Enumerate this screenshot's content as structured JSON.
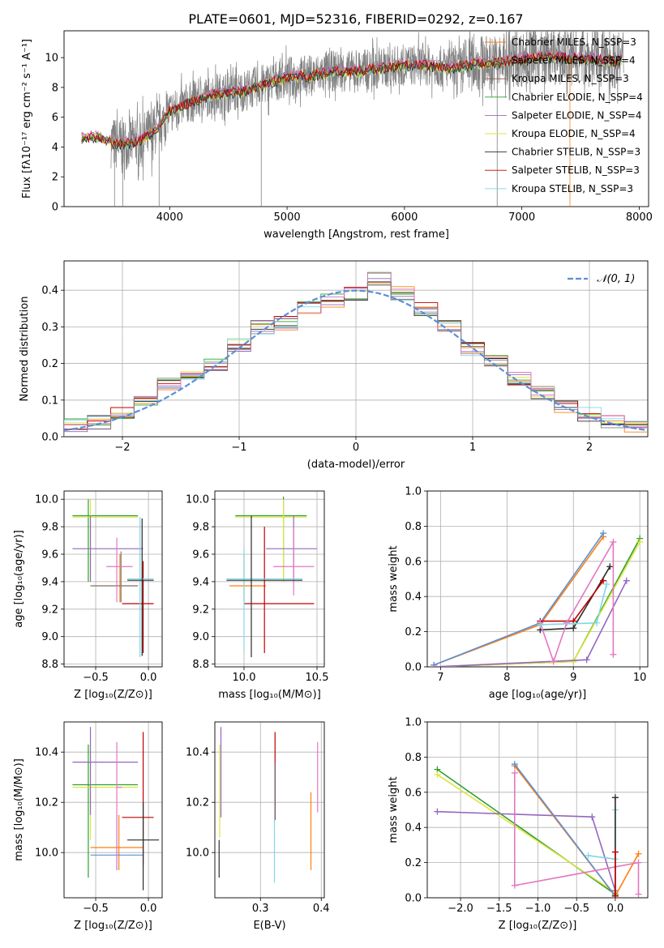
{
  "figure": {
    "title": "PLATE=0601, MJD=52316, FIBERID=0292, z=0.167"
  },
  "colors": [
    "#ff7f0e",
    "#7f7f7f",
    "#8c564b",
    "#2ca02c",
    "#9467bd",
    "#e0e33f",
    "#2b2b2b",
    "#c00000",
    "#7fd8e8",
    "#e377c2",
    "#5b8fd6",
    "#3b6e3b"
  ],
  "chart_data": [
    {
      "type": "line",
      "panel": "spectrum",
      "xlabel": "wavelength [Angstrom, rest frame]",
      "ylabel": "Flux [fλ10⁻¹⁷ erg cm⁻² s⁻¹ A⁻¹]",
      "xlim": [
        3100,
        8080
      ],
      "ylim": [
        0,
        11.8
      ],
      "xticks": [
        4000,
        5000,
        6000,
        7000,
        8000
      ],
      "yticks": [
        0,
        2,
        4,
        6,
        8,
        10
      ],
      "grid": false,
      "legend_position": "top-right",
      "legend": [
        "Chabrier MILES, N_SSP=3",
        "Salpeter MILES, N_SSP=4",
        "Kroupa MILES, N_SSP=3",
        "Chabrier ELODIE, N_SSP=4",
        "Salpeter ELODIE, N_SSP=4",
        "Kroupa ELODIE, N_SSP=4",
        "Chabrier STELIB, N_SSP=3",
        "Salpeter STELIB, N_SSP=3",
        "Kroupa STELIB, N_SSP=3"
      ],
      "data_series_x": [
        3250,
        3400,
        3550,
        3700,
        3850,
        4000,
        4200,
        4400,
        4600,
        4800,
        5000,
        5200,
        5400,
        5600,
        5800,
        6000,
        6200,
        6400,
        6600,
        6800,
        7000,
        7200,
        7400,
        7600,
        7850
      ],
      "data_series_y": [
        4.6,
        4.7,
        4.2,
        4.3,
        4.9,
        6.4,
        7.1,
        7.6,
        7.7,
        8.2,
        8.7,
        8.8,
        9.1,
        9.1,
        9.3,
        9.5,
        9.5,
        9.3,
        9.6,
        9.7,
        9.9,
        10.1,
        10.0,
        9.9,
        9.8
      ],
      "series": [
        {
          "name": "data",
          "color": "#808080"
        },
        {
          "name": "Chabrier MILES, N_SSP=3",
          "color": "#ff7f0e"
        },
        {
          "name": "Salpeter MILES, N_SSP=4",
          "color": "#7f7f7f"
        },
        {
          "name": "Kroupa MILES, N_SSP=3",
          "color": "#8c564b"
        },
        {
          "name": "Chabrier ELODIE, N_SSP=4",
          "color": "#2ca02c"
        },
        {
          "name": "Salpeter ELODIE, N_SSP=4",
          "color": "#9467bd"
        },
        {
          "name": "Kroupa ELODIE, N_SSP=4",
          "color": "#e0e33f"
        },
        {
          "name": "Chabrier STELIB, N_SSP=3",
          "color": "#2b2b2b"
        },
        {
          "name": "Salpeter STELIB, N_SSP=3",
          "color": "#c00000"
        },
        {
          "name": "Kroupa STELIB, N_SSP=3",
          "color": "#7fd8e8"
        }
      ]
    },
    {
      "type": "line",
      "panel": "residuals",
      "xlabel": "(data-model)/error",
      "ylabel": "Normed distribution",
      "xlim": [
        -2.5,
        2.5
      ],
      "ylim": [
        0,
        0.48
      ],
      "xticks": [
        -2,
        -1,
        0,
        1,
        2
      ],
      "yticks": [
        0.0,
        0.1,
        0.2,
        0.3,
        0.4
      ],
      "grid": true,
      "legend_position": "top-right",
      "legend": [
        "𝒩(0, 1)"
      ],
      "bins": [
        -2.5,
        -2.3,
        -2.1,
        -1.9,
        -1.7,
        -1.5,
        -1.3,
        -1.1,
        -0.9,
        -0.7,
        -0.5,
        -0.3,
        -0.1,
        0.1,
        0.3,
        0.5,
        0.7,
        0.9,
        1.1,
        1.3,
        1.5,
        1.7,
        1.9,
        2.1,
        2.3,
        2.5
      ],
      "hist": [
        0.03,
        0.04,
        0.06,
        0.1,
        0.14,
        0.17,
        0.2,
        0.25,
        0.3,
        0.31,
        0.35,
        0.37,
        0.39,
        0.43,
        0.39,
        0.35,
        0.3,
        0.24,
        0.21,
        0.16,
        0.12,
        0.08,
        0.06,
        0.04,
        0.03
      ],
      "normal_curve": {
        "name": "𝒩(0, 1)",
        "color": "#5b8fd6",
        "mean": 0,
        "sigma": 1
      }
    },
    {
      "type": "scatter",
      "panel": "age_vs_Z",
      "xlabel": "Z [log₁₀(Z/Z⊙)]",
      "ylabel": "age  [log₁₀(age/yr)]",
      "xlim": [
        -0.8,
        0.13
      ],
      "ylim": [
        8.78,
        10.06
      ],
      "xticks": [
        -0.5,
        0.0
      ],
      "yticks": [
        8.8,
        9.0,
        9.2,
        9.4,
        9.6,
        9.8,
        10.0
      ],
      "grid": true
    },
    {
      "type": "scatter",
      "panel": "age_vs_mass",
      "xlabel": "mass [log₁₀(M/M⊙)]",
      "ylabel": "",
      "xlim": [
        9.8,
        10.55
      ],
      "ylim": [
        8.78,
        10.06
      ],
      "xticks": [
        10.0,
        10.5
      ],
      "yticks": [
        8.8,
        9.0,
        9.2,
        9.4,
        9.6,
        9.8,
        10.0
      ],
      "grid": true
    },
    {
      "type": "line",
      "panel": "massweight_vs_age",
      "xlabel": "age  [log₁₀(age/yr)]",
      "ylabel": "mass weight",
      "xlim": [
        6.8,
        10.12
      ],
      "ylim": [
        0.0,
        1.0
      ],
      "xticks": [
        7,
        8,
        9,
        10
      ],
      "yticks": [
        0.0,
        0.2,
        0.4,
        0.6,
        0.8,
        1.0
      ],
      "grid": true
    },
    {
      "type": "scatter",
      "panel": "mass_vs_Z",
      "xlabel": "Z [log₁₀(Z/Z⊙)]",
      "ylabel": "mass [log₁₀(M/M⊙)]",
      "xlim": [
        -0.8,
        0.13
      ],
      "ylim": [
        9.82,
        10.52
      ],
      "xticks": [
        -0.5,
        0.0
      ],
      "yticks": [
        10.0,
        10.2,
        10.4
      ],
      "grid": true
    },
    {
      "type": "scatter",
      "panel": "mass_vs_EBV",
      "xlabel": "E(B-V)",
      "ylabel": "",
      "xlim": [
        0.225,
        0.405
      ],
      "ylim": [
        9.82,
        10.52
      ],
      "xticks": [
        0.3,
        0.4
      ],
      "yticks": [
        10.0,
        10.2,
        10.4
      ],
      "grid": true
    },
    {
      "type": "line",
      "panel": "massweight_vs_Z",
      "xlabel": "Z [log₁₀(Z/Z⊙)]",
      "ylabel": "mass weight",
      "xlim": [
        -2.43,
        0.42
      ],
      "ylim": [
        0.0,
        1.0
      ],
      "xticks": [
        -2.0,
        -1.5,
        -1.0,
        -0.5,
        0.0
      ],
      "yticks": [
        0.0,
        0.2,
        0.4,
        0.6,
        0.8,
        1.0
      ],
      "grid": true
    }
  ],
  "points": {
    "age_vs_Z": [
      {
        "c": 3,
        "x": -0.57,
        "xe": [
          -0.72,
          -0.1
        ],
        "y": 9.88,
        "ye": [
          9.4,
          10.0
        ]
      },
      {
        "c": 5,
        "x": -0.55,
        "xe": [
          -0.72,
          -0.1
        ],
        "y": 9.87,
        "ye": [
          9.4,
          10.0
        ]
      },
      {
        "c": 4,
        "x": -0.55,
        "xe": [
          -0.72,
          -0.05
        ],
        "y": 9.64,
        "ye": [
          9.4,
          9.88
        ]
      },
      {
        "c": 0,
        "x": -0.27,
        "xe": [
          -0.55,
          -0.1
        ],
        "y": 9.37,
        "ye": [
          9.25,
          9.6
        ]
      },
      {
        "c": 1,
        "x": -0.26,
        "xe": [
          -0.55,
          -0.1
        ],
        "y": 9.37,
        "ye": [
          9.25,
          9.62
        ]
      },
      {
        "c": 9,
        "x": -0.3,
        "xe": [
          -0.4,
          -0.15
        ],
        "y": 9.51,
        "ye": [
          9.25,
          9.72
        ]
      },
      {
        "c": 7,
        "x": -0.05,
        "xe": [
          -0.25,
          0.05
        ],
        "y": 9.24,
        "ye": [
          8.88,
          9.55
        ]
      },
      {
        "c": 8,
        "x": -0.08,
        "xe": [
          -0.2,
          0.05
        ],
        "y": 9.42,
        "ye": [
          8.85,
          9.87
        ]
      },
      {
        "c": 6,
        "x": -0.06,
        "xe": [
          -0.2,
          0.05
        ],
        "y": 9.41,
        "ye": [
          8.86,
          9.86
        ]
      }
    ],
    "age_vs_mass": [
      {
        "c": 3,
        "x": 10.27,
        "xe": [
          9.94,
          10.43
        ],
        "y": 9.88,
        "ye": [
          9.4,
          10.02
        ]
      },
      {
        "c": 5,
        "x": 10.27,
        "xe": [
          9.94,
          10.43
        ],
        "y": 9.87,
        "ye": [
          9.4,
          10.0
        ]
      },
      {
        "c": 4,
        "x": 10.34,
        "xe": [
          10.15,
          10.5
        ],
        "y": 9.64,
        "ye": [
          9.4,
          9.88
        ]
      },
      {
        "c": 0,
        "x": 10.0,
        "xe": [
          9.9,
          10.15
        ],
        "y": 9.37,
        "ye": [
          9.25,
          9.6
        ]
      },
      {
        "c": 9,
        "x": 10.34,
        "xe": [
          10.2,
          10.48
        ],
        "y": 9.51,
        "ye": [
          9.3,
          9.8
        ]
      },
      {
        "c": 7,
        "x": 10.14,
        "xe": [
          10.0,
          10.48
        ],
        "y": 9.24,
        "ye": [
          8.88,
          9.8
        ]
      },
      {
        "c": 8,
        "x": 10.0,
        "xe": [
          9.88,
          10.4
        ],
        "y": 9.42,
        "ye": [
          8.9,
          9.65
        ]
      },
      {
        "c": 6,
        "x": 10.05,
        "xe": [
          9.88,
          10.4
        ],
        "y": 9.41,
        "ye": [
          8.85,
          9.88
        ]
      }
    ],
    "massweight_vs_age": [
      {
        "c": 0,
        "xs": [
          6.9,
          8.5,
          9.45
        ],
        "ys": [
          0.01,
          0.24,
          0.74
        ]
      },
      {
        "c": 10,
        "xs": [
          6.9,
          8.5,
          9.45
        ],
        "ys": [
          0.01,
          0.25,
          0.76
        ]
      },
      {
        "c": 3,
        "xs": [
          6.9,
          9.0,
          10.0
        ],
        "ys": [
          0.0,
          0.03,
          0.73
        ]
      },
      {
        "c": 5,
        "xs": [
          6.9,
          9.0,
          10.0
        ],
        "ys": [
          0.0,
          0.03,
          0.71
        ]
      },
      {
        "c": 4,
        "xs": [
          6.9,
          9.2,
          9.8
        ],
        "ys": [
          0.0,
          0.04,
          0.49
        ]
      },
      {
        "c": 6,
        "xs": [
          8.5,
          9.0,
          9.55
        ],
        "ys": [
          0.21,
          0.22,
          0.57
        ]
      },
      {
        "c": 7,
        "xs": [
          8.5,
          9.0,
          9.45
        ],
        "ys": [
          0.26,
          0.26,
          0.49
        ]
      },
      {
        "c": 9,
        "xs": [
          8.5,
          8.7,
          8.9,
          9.6,
          9.6
        ],
        "ys": [
          0.25,
          0.03,
          0.25,
          0.71,
          0.07
        ]
      },
      {
        "c": 8,
        "xs": [
          8.5,
          9.35,
          9.5
        ],
        "ys": [
          0.24,
          0.25,
          0.47
        ]
      }
    ],
    "mass_vs_Z": [
      {
        "c": 3,
        "x": -0.57,
        "xe": [
          -0.72,
          -0.1
        ],
        "y": 10.27,
        "ye": [
          9.9,
          10.43
        ]
      },
      {
        "c": 5,
        "x": -0.55,
        "xe": [
          -0.72,
          -0.1
        ],
        "y": 10.26,
        "ye": [
          10.05,
          10.43
        ]
      },
      {
        "c": 4,
        "x": -0.55,
        "xe": [
          -0.72,
          -0.1
        ],
        "y": 10.36,
        "ye": [
          10.15,
          10.5
        ]
      },
      {
        "c": 0,
        "x": -0.28,
        "xe": [
          -0.55,
          -0.05
        ],
        "y": 10.02,
        "ye": [
          9.93,
          10.15
        ]
      },
      {
        "c": 10,
        "x": -0.3,
        "xe": [
          -0.55,
          -0.05
        ],
        "y": 9.99,
        "ye": [
          9.93,
          10.15
        ]
      },
      {
        "c": 9,
        "x": -0.3,
        "xe": [
          -0.3,
          -0.25
        ],
        "y": 10.26,
        "ye": [
          9.93,
          10.44
        ]
      },
      {
        "c": 7,
        "x": -0.05,
        "xe": [
          -0.25,
          0.05
        ],
        "y": 10.14,
        "ye": [
          9.95,
          10.48
        ]
      },
      {
        "c": 6,
        "x": -0.05,
        "xe": [
          -0.2,
          0.1
        ],
        "y": 10.05,
        "ye": [
          9.85,
          10.2
        ]
      }
    ],
    "mass_vs_EBV": [
      {
        "c": 5,
        "x": 0.233,
        "ye": [
          10.06,
          10.43
        ]
      },
      {
        "c": 6,
        "x": 0.232,
        "ye": [
          9.9,
          10.05
        ]
      },
      {
        "c": 4,
        "x": 0.235,
        "ye": [
          10.14,
          10.5
        ]
      },
      {
        "c": 7,
        "x": 0.324,
        "ye": [
          10.13,
          10.48
        ]
      },
      {
        "c": 8,
        "x": 0.323,
        "ye": [
          9.88,
          10.36
        ]
      },
      {
        "c": 0,
        "x": 0.383,
        "ye": [
          9.93,
          10.24
        ]
      },
      {
        "c": 9,
        "x": 0.394,
        "ye": [
          10.16,
          10.44
        ]
      }
    ],
    "massweight_vs_Z": [
      {
        "c": 3,
        "xs": [
          -2.3,
          0.0,
          0.0
        ],
        "ys": [
          0.73,
          0.02,
          0.02
        ]
      },
      {
        "c": 5,
        "xs": [
          -2.3,
          0.0
        ],
        "ys": [
          0.7,
          0.03
        ]
      },
      {
        "c": 4,
        "xs": [
          -2.3,
          -0.3,
          0.0
        ],
        "ys": [
          0.49,
          0.46,
          0.04
        ]
      },
      {
        "c": 0,
        "xs": [
          -1.3,
          0.0,
          0.3
        ],
        "ys": [
          0.75,
          0.01,
          0.25
        ]
      },
      {
        "c": 10,
        "xs": [
          -1.3,
          0.0
        ],
        "ys": [
          0.76,
          0.01
        ]
      },
      {
        "c": 9,
        "xs": [
          -1.3,
          -1.3,
          0.3,
          0.3
        ],
        "ys": [
          0.71,
          0.07,
          0.2,
          0.02
        ]
      },
      {
        "c": 8,
        "xs": [
          -0.35,
          0.0,
          0.0
        ],
        "ys": [
          0.24,
          0.22,
          0.5
        ]
      },
      {
        "c": 6,
        "xs": [
          0.0,
          0.0
        ],
        "ys": [
          0.57,
          0.01
        ]
      },
      {
        "c": 7,
        "xs": [
          0.0,
          0.0
        ],
        "ys": [
          0.26,
          0.01
        ]
      }
    ]
  }
}
